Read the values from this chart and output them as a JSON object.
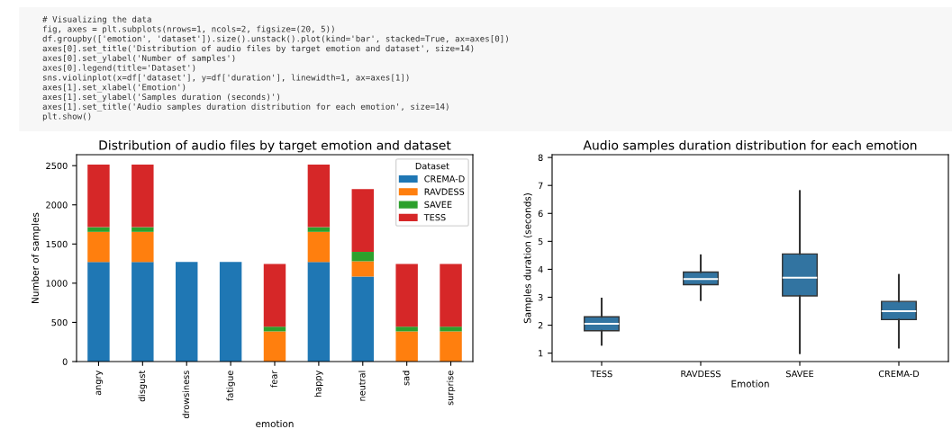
{
  "chart_data": [
    {
      "type": "other",
      "annotations": [
        "# Visualizing the data",
        "fig, axes = plt.subplots(nrows=1, ncols=2, figsize=(20, 5))",
        "df.groupby(['emotion', 'dataset']).size().unstack().plot(kind='bar', stacked=True, ax=axes[0])",
        "axes[0].set_title('Distribution of audio files by target emotion and dataset', size=14)",
        "axes[0].set_ylabel('Number of samples')",
        "axes[0].legend(title='Dataset')",
        "sns.violinplot(x=df['dataset'], y=df['duration'], linewidth=1, ax=axes[1])",
        "axes[1].set_xlabel('Emotion')",
        "axes[1].set_ylabel('Samples duration (seconds)')",
        "axes[1].set_title('Audio samples duration distribution for each emotion', size=14)",
        "plt.show()"
      ]
    },
    {
      "type": "bar",
      "title": "Distribution of audio files by target emotion and dataset",
      "xlabel": "emotion",
      "ylabel": "Number of samples",
      "legend_title": "Dataset",
      "legend": "top right",
      "stacked": true,
      "categories": [
        "angry",
        "disgust",
        "drowsiness",
        "fatigue",
        "fear",
        "happy",
        "neutral",
        "sad",
        "surprise"
      ],
      "ylim": [
        0,
        2640
      ],
      "yticks": [
        0,
        500,
        1000,
        1500,
        2000,
        2500
      ],
      "series": [
        {
          "name": "CREMA-D",
          "color": "#1f77b4",
          "values": [
            1270,
            1270,
            1270,
            1270,
            null,
            1270,
            1085,
            null,
            null
          ]
        },
        {
          "name": "RAVDESS",
          "color": "#ff7f0e",
          "values": [
            385,
            385,
            null,
            null,
            385,
            385,
            195,
            385,
            385
          ]
        },
        {
          "name": "SAVEE",
          "color": "#2ca02c",
          "values": [
            60,
            60,
            null,
            null,
            60,
            60,
            120,
            60,
            60
          ]
        },
        {
          "name": "TESS",
          "color": "#d62728",
          "values": [
            800,
            800,
            null,
            null,
            800,
            800,
            800,
            800,
            800
          ]
        }
      ]
    },
    {
      "type": "box",
      "title": "Audio samples duration distribution for each emotion",
      "xlabel": "Emotion",
      "ylabel": "Samples duration (seconds)",
      "categories": [
        "TESS",
        "RAVDESS",
        "SAVEE",
        "CREMA-D"
      ],
      "ylim": [
        0.7,
        8.1
      ],
      "yticks": [
        1,
        2,
        3,
        4,
        5,
        6,
        7,
        8
      ],
      "series": [
        {
          "color": "#3274a1",
          "boxes": [
            {
              "low": 1.3,
              "q1": 1.8,
              "median": 2.05,
              "q3": 2.3,
              "high": 2.95
            },
            {
              "low": 2.9,
              "q1": 3.45,
              "median": 3.65,
              "q3": 3.9,
              "high": 4.5
            },
            {
              "low": 1.0,
              "q1": 3.05,
              "median": 3.7,
              "q3": 4.55,
              "high": 6.8
            },
            {
              "low": 1.2,
              "q1": 2.2,
              "median": 2.5,
              "q3": 2.85,
              "high": 3.8
            }
          ]
        }
      ]
    }
  ]
}
